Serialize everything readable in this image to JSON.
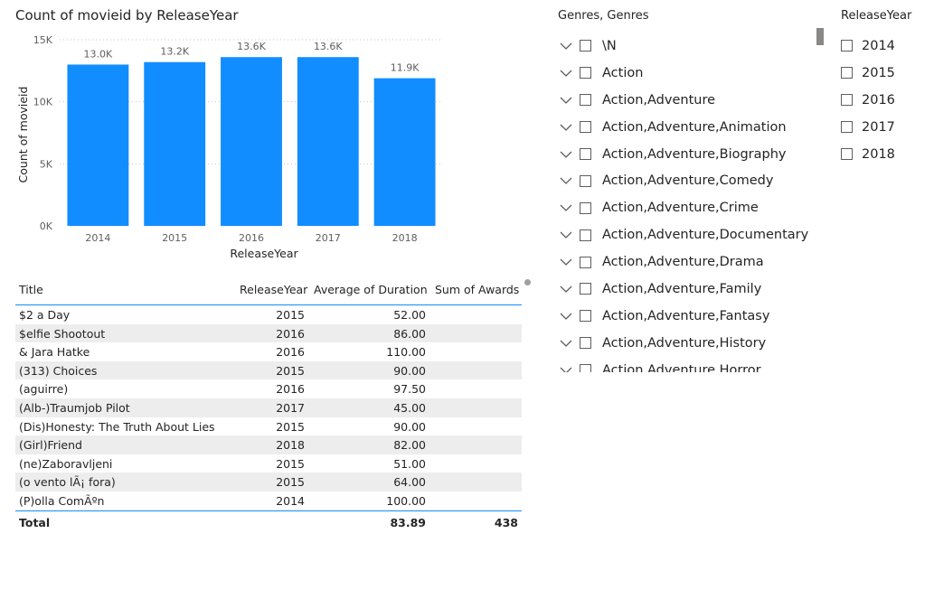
{
  "chart_data": {
    "type": "bar",
    "title": "Count of movieid by ReleaseYear",
    "xlabel": "ReleaseYear",
    "ylabel": "Count of movieid",
    "categories": [
      "2014",
      "2015",
      "2016",
      "2017",
      "2018"
    ],
    "values": [
      13000,
      13200,
      13600,
      13600,
      11900
    ],
    "data_labels": [
      "13.0K",
      "13.2K",
      "13.6K",
      "13.6K",
      "11.9K"
    ],
    "yticks": [
      0,
      5000,
      10000,
      15000
    ],
    "ytick_labels": [
      "0K",
      "5K",
      "10K",
      "15K"
    ],
    "ylim": [
      0,
      15000
    ],
    "grid": true,
    "bar_color": "#118DFF"
  },
  "table": {
    "columns": [
      "Title",
      "ReleaseYear",
      "Average of Duration",
      "Sum of Awards"
    ],
    "rows": [
      [
        "$2 a Day",
        "2015",
        "52.00",
        ""
      ],
      [
        "$elfie Shootout",
        "2016",
        "86.00",
        ""
      ],
      [
        "& Jara Hatke",
        "2016",
        "110.00",
        ""
      ],
      [
        "(313) Choices",
        "2015",
        "90.00",
        ""
      ],
      [
        "(aguirre)",
        "2016",
        "97.50",
        ""
      ],
      [
        "(Alb-)Traumjob Pilot",
        "2017",
        "45.00",
        ""
      ],
      [
        "(Dis)Honesty: The Truth About Lies",
        "2015",
        "90.00",
        ""
      ],
      [
        "(Girl)Friend",
        "2018",
        "82.00",
        ""
      ],
      [
        "(ne)Zaboravljeni",
        "2015",
        "51.00",
        ""
      ],
      [
        "(o vento lÃ¡ fora)",
        "2015",
        "64.00",
        ""
      ],
      [
        "(P)olla ComÃºn",
        "2014",
        "100.00",
        ""
      ]
    ],
    "total": {
      "label": "Total",
      "duration": "83.89",
      "awards": "438"
    }
  },
  "genres_slicer": {
    "header": "Genres, Genres",
    "items": [
      "\\N",
      "Action",
      "Action,Adventure",
      "Action,Adventure,Animation",
      "Action,Adventure,Biography",
      "Action,Adventure,Comedy",
      "Action,Adventure,Crime",
      "Action,Adventure,Documentary",
      "Action,Adventure,Drama",
      "Action,Adventure,Family",
      "Action,Adventure,Fantasy",
      "Action,Adventure,History",
      "Action,Adventure,Horror"
    ]
  },
  "year_slicer": {
    "header": "ReleaseYear",
    "items": [
      "2014",
      "2015",
      "2016",
      "2017",
      "2018"
    ]
  },
  "icons": {
    "expand": "chevron-down-icon",
    "checkbox": "checkbox-icon"
  }
}
